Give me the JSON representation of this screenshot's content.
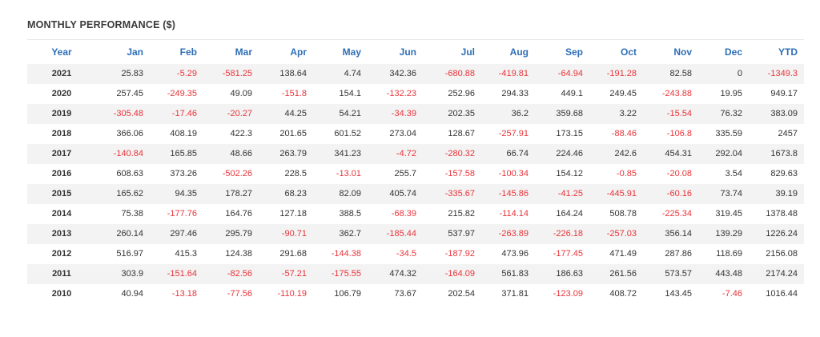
{
  "title": "MONTHLY PERFORMANCE ($)",
  "colors": {
    "header_text": "#2f6fb7",
    "negative": "#e8343a",
    "positive": "#333333",
    "row_stripe": "#f3f3f3"
  },
  "headers": [
    "Year",
    "Jan",
    "Feb",
    "Mar",
    "Apr",
    "May",
    "Jun",
    "Jul",
    "Aug",
    "Sep",
    "Oct",
    "Nov",
    "Dec",
    "YTD"
  ],
  "rows": [
    {
      "year": "2021",
      "values": [
        "25.83",
        "-5.29",
        "-581.25",
        "138.64",
        "4.74",
        "342.36",
        "-680.88",
        "-419.81",
        "-64.94",
        "-191.28",
        "82.58",
        "0",
        "-1349.3"
      ]
    },
    {
      "year": "2020",
      "values": [
        "257.45",
        "-249.35",
        "49.09",
        "-151.8",
        "154.1",
        "-132.23",
        "252.96",
        "294.33",
        "449.1",
        "249.45",
        "-243.88",
        "19.95",
        "949.17"
      ]
    },
    {
      "year": "2019",
      "values": [
        "-305.48",
        "-17.46",
        "-20.27",
        "44.25",
        "54.21",
        "-34.39",
        "202.35",
        "36.2",
        "359.68",
        "3.22",
        "-15.54",
        "76.32",
        "383.09"
      ]
    },
    {
      "year": "2018",
      "values": [
        "366.06",
        "408.19",
        "422.3",
        "201.65",
        "601.52",
        "273.04",
        "128.67",
        "-257.91",
        "173.15",
        "-88.46",
        "-106.8",
        "335.59",
        "2457"
      ]
    },
    {
      "year": "2017",
      "values": [
        "-140.84",
        "165.85",
        "48.66",
        "263.79",
        "341.23",
        "-4.72",
        "-280.32",
        "66.74",
        "224.46",
        "242.6",
        "454.31",
        "292.04",
        "1673.8"
      ]
    },
    {
      "year": "2016",
      "values": [
        "608.63",
        "373.26",
        "-502.26",
        "228.5",
        "-13.01",
        "255.7",
        "-157.58",
        "-100.34",
        "154.12",
        "-0.85",
        "-20.08",
        "3.54",
        "829.63"
      ]
    },
    {
      "year": "2015",
      "values": [
        "165.62",
        "94.35",
        "178.27",
        "68.23",
        "82.09",
        "405.74",
        "-335.67",
        "-145.86",
        "-41.25",
        "-445.91",
        "-60.16",
        "73.74",
        "39.19"
      ]
    },
    {
      "year": "2014",
      "values": [
        "75.38",
        "-177.76",
        "164.76",
        "127.18",
        "388.5",
        "-68.39",
        "215.82",
        "-114.14",
        "164.24",
        "508.78",
        "-225.34",
        "319.45",
        "1378.48"
      ]
    },
    {
      "year": "2013",
      "values": [
        "260.14",
        "297.46",
        "295.79",
        "-90.71",
        "362.7",
        "-185.44",
        "537.97",
        "-263.89",
        "-226.18",
        "-257.03",
        "356.14",
        "139.29",
        "1226.24"
      ]
    },
    {
      "year": "2012",
      "values": [
        "516.97",
        "415.3",
        "124.38",
        "291.68",
        "-144.38",
        "-34.5",
        "-187.92",
        "473.96",
        "-177.45",
        "471.49",
        "287.86",
        "118.69",
        "2156.08"
      ]
    },
    {
      "year": "2011",
      "values": [
        "303.9",
        "-151.64",
        "-82.56",
        "-57.21",
        "-175.55",
        "474.32",
        "-164.09",
        "561.83",
        "186.63",
        "261.56",
        "573.57",
        "443.48",
        "2174.24"
      ]
    },
    {
      "year": "2010",
      "values": [
        "40.94",
        "-13.18",
        "-77.56",
        "-110.19",
        "106.79",
        "73.67",
        "202.54",
        "371.81",
        "-123.09",
        "408.72",
        "143.45",
        "-7.46",
        "1016.44"
      ]
    }
  ]
}
